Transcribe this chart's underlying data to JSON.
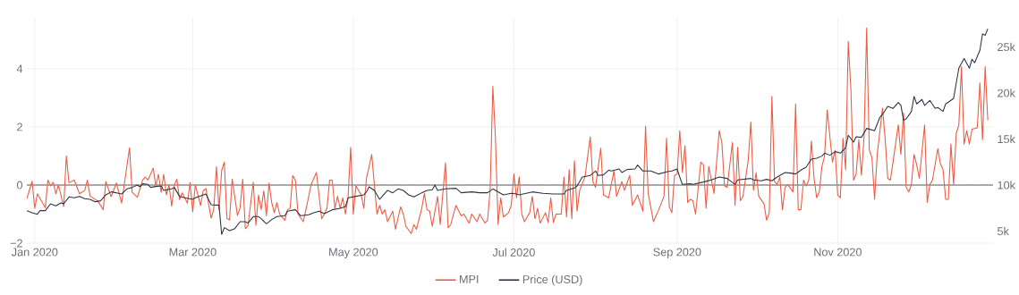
{
  "chart_data": {
    "type": "line",
    "xlim": [
      "2019-12-29",
      "2020-12-30"
    ],
    "xticks": [
      {
        "value": "2020-01-01",
        "label": "Jan 2020"
      },
      {
        "value": "2020-03-01",
        "label": "Mar 2020"
      },
      {
        "value": "2020-05-01",
        "label": "May 2020"
      },
      {
        "value": "2020-07-01",
        "label": "Jul 2020"
      },
      {
        "value": "2020-09-01",
        "label": "Sep 2020"
      },
      {
        "value": "2020-11-01",
        "label": "Nov 2020"
      }
    ],
    "ylim": [
      -2.03,
      5.75
    ],
    "yticks": [
      {
        "value": -2,
        "label": "−2"
      },
      0,
      2,
      4
    ],
    "y2lim": [
      3590,
      28150
    ],
    "y2ticks": [
      {
        "value": 5000,
        "label": "5k"
      },
      {
        "value": 10000,
        "label": "10k"
      },
      {
        "value": 15000,
        "label": "15k"
      },
      {
        "value": 20000,
        "label": "20k"
      },
      {
        "value": 25000,
        "label": "25k"
      }
    ],
    "grid": true,
    "legend": "bottom",
    "marker": "none",
    "ref_lines": [
      {
        "axis": "y",
        "value": 0,
        "color": "#8a8a8a"
      }
    ],
    "series": [
      {
        "name": "MPI",
        "color": "#ec5a42",
        "x": [
          "2019-12-29",
          "2019-12-31",
          "2020-01-01",
          "2020-01-02",
          "2020-01-05",
          "2020-01-06",
          "2020-01-07",
          "2020-01-08",
          "2020-01-09",
          "2020-01-10",
          "2020-01-12",
          "2020-01-13",
          "2020-01-14",
          "2020-01-16",
          "2020-01-18",
          "2020-01-20",
          "2020-01-21",
          "2020-01-22",
          "2020-01-25",
          "2020-01-27",
          "2020-01-28",
          "2020-01-30",
          "2020-02-01",
          "2020-02-03",
          "2020-02-06",
          "2020-02-07",
          "2020-02-09",
          "2020-02-11",
          "2020-02-12",
          "2020-02-13",
          "2020-02-15",
          "2020-02-16",
          "2020-02-17",
          "2020-02-18",
          "2020-02-19",
          "2020-02-20",
          "2020-02-21",
          "2020-02-22",
          "2020-02-23",
          "2020-02-24",
          "2020-02-25",
          "2020-02-26",
          "2020-02-28",
          "2020-02-29",
          "2020-03-01",
          "2020-03-02",
          "2020-03-04",
          "2020-03-05",
          "2020-03-06",
          "2020-03-08",
          "2020-03-09",
          "2020-03-10",
          "2020-03-11",
          "2020-03-12",
          "2020-03-13",
          "2020-03-14",
          "2020-03-15",
          "2020-03-16",
          "2020-03-18",
          "2020-03-19",
          "2020-03-20",
          "2020-03-21",
          "2020-03-22",
          "2020-03-24",
          "2020-03-25",
          "2020-03-26",
          "2020-03-27",
          "2020-03-28",
          "2020-03-29",
          "2020-03-30",
          "2020-03-31",
          "2020-04-01",
          "2020-04-02",
          "2020-04-03",
          "2020-04-05",
          "2020-04-06",
          "2020-04-07",
          "2020-04-08",
          "2020-04-09",
          "2020-04-10",
          "2020-04-12",
          "2020-04-13",
          "2020-04-15",
          "2020-04-17",
          "2020-04-19",
          "2020-04-20",
          "2020-04-21",
          "2020-04-22",
          "2020-04-23",
          "2020-04-24",
          "2020-04-25",
          "2020-04-26",
          "2020-04-27",
          "2020-04-28",
          "2020-04-29",
          "2020-04-30",
          "2020-05-01",
          "2020-05-02",
          "2020-05-04",
          "2020-05-05",
          "2020-05-06",
          "2020-05-08",
          "2020-05-09",
          "2020-05-10",
          "2020-05-11",
          "2020-05-12",
          "2020-05-13",
          "2020-05-14",
          "2020-05-16",
          "2020-05-17",
          "2020-05-19",
          "2020-05-20",
          "2020-05-21",
          "2020-05-23",
          "2020-05-24",
          "2020-05-25",
          "2020-05-27",
          "2020-05-28",
          "2020-05-29",
          "2020-05-30",
          "2020-05-31",
          "2020-06-02",
          "2020-06-03",
          "2020-06-05",
          "2020-06-06",
          "2020-06-07",
          "2020-06-09",
          "2020-06-11",
          "2020-06-12",
          "2020-06-14",
          "2020-06-15",
          "2020-06-17",
          "2020-06-18",
          "2020-06-20",
          "2020-06-21",
          "2020-06-22",
          "2020-06-23",
          "2020-06-24",
          "2020-06-25",
          "2020-06-26",
          "2020-06-27",
          "2020-06-29",
          "2020-06-30",
          "2020-07-01",
          "2020-07-02",
          "2020-07-03",
          "2020-07-04",
          "2020-07-05",
          "2020-07-07",
          "2020-07-08",
          "2020-07-09",
          "2020-07-10",
          "2020-07-11",
          "2020-07-13",
          "2020-07-14",
          "2020-07-15",
          "2020-07-16",
          "2020-07-17",
          "2020-07-19",
          "2020-07-20",
          "2020-07-21",
          "2020-07-22",
          "2020-07-23",
          "2020-07-24",
          "2020-07-25",
          "2020-07-26",
          "2020-07-28",
          "2020-07-30",
          "2020-07-31",
          "2020-08-01",
          "2020-08-03",
          "2020-08-04",
          "2020-08-06",
          "2020-08-08",
          "2020-08-09",
          "2020-08-11",
          "2020-08-12",
          "2020-08-14",
          "2020-08-15",
          "2020-08-17",
          "2020-08-19",
          "2020-08-20",
          "2020-08-21",
          "2020-08-23",
          "2020-08-25",
          "2020-08-27",
          "2020-08-28",
          "2020-08-29",
          "2020-08-30",
          "2020-08-31",
          "2020-09-01",
          "2020-09-02",
          "2020-09-03",
          "2020-09-04",
          "2020-09-05",
          "2020-09-06",
          "2020-09-07",
          "2020-09-08",
          "2020-09-10",
          "2020-09-11",
          "2020-09-12",
          "2020-09-13",
          "2020-09-15",
          "2020-09-17",
          "2020-09-18",
          "2020-09-19",
          "2020-09-20",
          "2020-09-22",
          "2020-09-23",
          "2020-09-24",
          "2020-09-25",
          "2020-09-26",
          "2020-09-28",
          "2020-09-29",
          "2020-09-30",
          "2020-10-01",
          "2020-10-02",
          "2020-10-04",
          "2020-10-05",
          "2020-10-06",
          "2020-10-07",
          "2020-10-08",
          "2020-10-09",
          "2020-10-10",
          "2020-10-11",
          "2020-10-12",
          "2020-10-13",
          "2020-10-15",
          "2020-10-16",
          "2020-10-17",
          "2020-10-18",
          "2020-10-19",
          "2020-10-20",
          "2020-10-21",
          "2020-10-22",
          "2020-10-23",
          "2020-10-24",
          "2020-10-25",
          "2020-10-26",
          "2020-10-27",
          "2020-10-28",
          "2020-10-30",
          "2020-10-31",
          "2020-11-01",
          "2020-11-02",
          "2020-11-03",
          "2020-11-04",
          "2020-11-05",
          "2020-11-06",
          "2020-11-07",
          "2020-11-08",
          "2020-11-09",
          "2020-11-10",
          "2020-11-11",
          "2020-11-12",
          "2020-11-13",
          "2020-11-14",
          "2020-11-15",
          "2020-11-16",
          "2020-11-18",
          "2020-11-19",
          "2020-11-20",
          "2020-11-21",
          "2020-11-22",
          "2020-11-24",
          "2020-11-25",
          "2020-11-26",
          "2020-11-27",
          "2020-11-28",
          "2020-11-29",
          "2020-11-30",
          "2020-12-01",
          "2020-12-02",
          "2020-12-04",
          "2020-12-05",
          "2020-12-06",
          "2020-12-07",
          "2020-12-09",
          "2020-12-10",
          "2020-12-11",
          "2020-12-12",
          "2020-12-13",
          "2020-12-14",
          "2020-12-15",
          "2020-12-16",
          "2020-12-17",
          "2020-12-18",
          "2020-12-19",
          "2020-12-20",
          "2020-12-21",
          "2020-12-22",
          "2020-12-24",
          "2020-12-25",
          "2020-12-26",
          "2020-12-27",
          "2020-12-28"
        ],
        "values": [
          -0.47,
          0.13,
          -0.8,
          -0.3,
          -0.78,
          0.17,
          -0.03,
          0.1,
          -0.3,
          0.0,
          -0.74,
          1.0,
          0.08,
          0.17,
          -0.3,
          -0.18,
          0.17,
          -0.38,
          -0.55,
          -0.85,
          0.12,
          -0.4,
          0.07,
          -0.62,
          1.28,
          -0.25,
          -0.42,
          0.17,
          0.27,
          0.17,
          0.58,
          -0.03,
          0.37,
          -0.25,
          0.37,
          -0.34,
          0.0,
          -0.73,
          0.0,
          0.2,
          -0.5,
          -0.27,
          -0.62,
          0.08,
          -0.92,
          0.0,
          -0.7,
          -0.2,
          -0.12,
          -1.14,
          -0.83,
          0.63,
          -0.85,
          0.5,
          0.79,
          -1.15,
          -1.2,
          0.21,
          -1.05,
          -0.78,
          0.2,
          -1.5,
          -1.4,
          0.1,
          -1.38,
          -0.34,
          -0.84,
          -0.2,
          -1.05,
          0.07,
          -0.6,
          -0.95,
          -0.6,
          -1.0,
          -1.21,
          -0.85,
          -0.8,
          0.33,
          0.17,
          -1.0,
          -1.26,
          -0.85,
          0.02,
          0.43,
          -1.16,
          -1.0,
          -0.8,
          0.17,
          0.17,
          -0.8,
          -0.39,
          -0.8,
          -0.44,
          -1.0,
          -0.44,
          1.3,
          -1.0,
          -0.03,
          -0.34,
          -0.8,
          0.23,
          1.05,
          0.02,
          -1.0,
          -0.7,
          -1.0,
          -0.85,
          -1.26,
          -0.9,
          -1.52,
          -0.75,
          -1.0,
          -1.42,
          -1.67,
          -1.36,
          -1.52,
          -0.8,
          -0.29,
          -0.85,
          -0.9,
          -1.42,
          -0.39,
          -1.36,
          0.76,
          -1.47,
          -1.36,
          -0.7,
          -1.06,
          -1.0,
          -1.31,
          -1.0,
          -1.26,
          -1.0,
          -1.31,
          -1.21,
          -0.13,
          3.4,
          1.6,
          -1.36,
          -0.44,
          -1.1,
          -0.95,
          -0.7,
          0.38,
          -0.44,
          0.28,
          -1.0,
          -1.26,
          -0.95,
          -0.39,
          -1.16,
          -0.8,
          -1.31,
          -0.95,
          -1.29,
          -0.44,
          -1.29,
          -1.0,
          -1.0,
          0.28,
          -1.1,
          0.53,
          -1.16,
          0.84,
          -0.9,
          -0.18,
          0.28,
          1.66,
          0.12,
          -0.08,
          1.27,
          -0.34,
          -0.44,
          0.48,
          -0.39,
          0.12,
          -0.18,
          0.33,
          -0.7,
          -0.34,
          -0.9,
          2.02,
          -0.29,
          -1.26,
          -0.85,
          -0.39,
          1.61,
          -0.75,
          -0.95,
          0.33,
          0.38,
          1.87,
          0.43,
          1.35,
          -0.6,
          -0.49,
          -0.54,
          -1.0,
          0.79,
          0.69,
          -0.8,
          0.64,
          -0.29,
          1.87,
          1.46,
          -0.03,
          -0.08,
          1.46,
          -0.7,
          1.3,
          -0.54,
          -0.39,
          0.84,
          2.17,
          -0.18,
          0.43,
          -0.39,
          -0.65,
          -1.21,
          -0.95,
          3.05,
          0.12,
          0.02,
          0.28,
          -0.85,
          -0.08,
          0.02,
          -0.24,
          2.79,
          -0.85,
          -0.85,
          0.17,
          -0.03,
          0.17,
          1.51,
          0.23,
          -0.44,
          -0.24,
          0.64,
          0.99,
          2.58,
          0.79,
          1.2,
          -0.34,
          -0.44,
          1.61,
          0.53,
          4.94,
          3.3,
          0.17,
          0.38,
          1.56,
          0.33,
          1.66,
          5.4,
          1.2,
          0.94,
          -0.49,
          1.05,
          2.64,
          1.61,
          0.23,
          0.17,
          0.79,
          2.07,
          1.05,
          2.48,
          -0.08,
          -0.24,
          0.02,
          1.05,
          0.69,
          0.23,
          2.07,
          -0.6,
          0.02,
          0.17,
          1.25,
          0.74,
          0.53,
          -0.49,
          -0.49,
          1.41,
          0.02,
          1.76,
          2.07,
          4.07,
          1.41,
          1.87,
          1.41,
          1.92,
          1.97,
          3.51,
          1.56,
          4.07,
          2.23
        ]
      },
      {
        "name": "Price (USD)",
        "color": "#2a3440",
        "axis": "y2",
        "x": [
          "2019-12-29",
          "2019-12-31",
          "2020-01-02",
          "2020-01-03",
          "2020-01-05",
          "2020-01-07",
          "2020-01-09",
          "2020-01-11",
          "2020-01-12",
          "2020-01-14",
          "2020-01-16",
          "2020-01-18",
          "2020-01-20",
          "2020-01-22",
          "2020-01-24",
          "2020-01-26",
          "2020-01-28",
          "2020-01-30",
          "2020-02-01",
          "2020-02-03",
          "2020-02-05",
          "2020-02-07",
          "2020-02-09",
          "2020-02-10",
          "2020-02-11",
          "2020-02-13",
          "2020-02-14",
          "2020-02-16",
          "2020-02-18",
          "2020-02-19",
          "2020-02-22",
          "2020-02-23",
          "2020-02-25",
          "2020-02-27",
          "2020-03-01",
          "2020-03-02",
          "2020-03-05",
          "2020-03-06",
          "2020-03-08",
          "2020-03-11",
          "2020-03-12",
          "2020-03-13",
          "2020-03-15",
          "2020-03-17",
          "2020-03-19",
          "2020-03-21",
          "2020-03-22",
          "2020-03-24",
          "2020-03-26",
          "2020-03-27",
          "2020-03-29",
          "2020-03-31",
          "2020-04-02",
          "2020-04-05",
          "2020-04-06",
          "2020-04-09",
          "2020-04-11",
          "2020-04-14",
          "2020-04-16",
          "2020-04-18",
          "2020-04-20",
          "2020-04-23",
          "2020-04-26",
          "2020-04-28",
          "2020-04-29",
          "2020-05-02",
          "2020-05-05",
          "2020-05-06",
          "2020-05-07",
          "2020-05-09",
          "2020-05-11",
          "2020-05-12",
          "2020-05-14",
          "2020-05-16",
          "2020-05-18",
          "2020-05-20",
          "2020-05-22",
          "2020-05-24",
          "2020-05-27",
          "2020-05-29",
          "2020-05-31",
          "2020-06-01",
          "2020-06-02",
          "2020-06-05",
          "2020-06-09",
          "2020-06-11",
          "2020-06-15",
          "2020-06-18",
          "2020-06-21",
          "2020-06-23",
          "2020-06-27",
          "2020-06-30",
          "2020-07-02",
          "2020-07-03",
          "2020-07-08",
          "2020-07-12",
          "2020-07-16",
          "2020-07-20",
          "2020-07-21",
          "2020-07-24",
          "2020-07-25",
          "2020-07-27",
          "2020-07-30",
          "2020-08-01",
          "2020-08-02",
          "2020-08-04",
          "2020-08-06",
          "2020-08-07",
          "2020-08-10",
          "2020-08-11",
          "2020-08-13",
          "2020-08-16",
          "2020-08-17",
          "2020-08-19",
          "2020-08-22",
          "2020-08-25",
          "2020-08-28",
          "2020-08-30",
          "2020-09-01",
          "2020-09-02",
          "2020-09-03",
          "2020-09-06",
          "2020-09-07",
          "2020-09-11",
          "2020-09-14",
          "2020-09-17",
          "2020-09-20",
          "2020-09-23",
          "2020-09-24",
          "2020-09-29",
          "2020-09-30",
          "2020-10-03",
          "2020-10-05",
          "2020-10-07",
          "2020-10-09",
          "2020-10-12",
          "2020-10-14",
          "2020-10-16",
          "2020-10-18",
          "2020-10-20",
          "2020-10-22",
          "2020-10-24",
          "2020-10-26",
          "2020-10-27",
          "2020-10-29",
          "2020-10-31",
          "2020-11-02",
          "2020-11-04",
          "2020-11-05",
          "2020-11-07",
          "2020-11-08",
          "2020-11-10",
          "2020-11-12",
          "2020-11-15",
          "2020-11-17",
          "2020-11-18",
          "2020-11-20",
          "2020-11-22",
          "2020-11-24",
          "2020-11-25",
          "2020-11-26",
          "2020-11-27",
          "2020-11-29",
          "2020-11-30",
          "2020-12-01",
          "2020-12-03",
          "2020-12-04",
          "2020-12-06",
          "2020-12-08",
          "2020-12-09",
          "2020-12-11",
          "2020-12-12",
          "2020-12-14",
          "2020-12-15",
          "2020-12-17",
          "2020-12-19",
          "2020-12-21",
          "2020-12-22",
          "2020-12-23",
          "2020-12-25",
          "2020-12-26",
          "2020-12-27",
          "2020-12-28"
        ],
        "values": [
          7216,
          6990,
          6828,
          7216,
          7216,
          7961,
          7734,
          8058,
          7961,
          8705,
          8608,
          8770,
          8511,
          8446,
          8187,
          8284,
          8932,
          9255,
          9158,
          9029,
          9579,
          9741,
          10000,
          9806,
          10129,
          10065,
          9741,
          9838,
          9903,
          9417,
          9579,
          9741,
          8770,
          8608,
          8446,
          8608,
          8932,
          9029,
          7864,
          7799,
          4627,
          5371,
          5047,
          5274,
          6019,
          6019,
          5857,
          6569,
          6569,
          6342,
          5792,
          6245,
          6569,
          6666,
          7151,
          7313,
          6666,
          6763,
          6990,
          7151,
          6892,
          7313,
          7475,
          7637,
          8608,
          8770,
          8932,
          9255,
          9806,
          9417,
          8446,
          8770,
          9417,
          9158,
          9579,
          9417,
          8932,
          8705,
          9158,
          9417,
          9482,
          10000,
          9417,
          9579,
          9644,
          9158,
          9255,
          9158,
          9158,
          9579,
          8932,
          9094,
          9029,
          8932,
          9255,
          9094,
          9029,
          9029,
          9417,
          9676,
          9903,
          10874,
          11036,
          11521,
          11036,
          11101,
          11618,
          11521,
          11748,
          11360,
          11683,
          11748,
          12169,
          11521,
          11521,
          11198,
          11424,
          11521,
          11748,
          10874,
          10065,
          10129,
          10065,
          10324,
          10550,
          10874,
          10712,
          10065,
          10550,
          10712,
          10550,
          10453,
          10615,
          10453,
          10874,
          11360,
          11295,
          11198,
          11618,
          11942,
          12816,
          12913,
          13140,
          13464,
          13237,
          13625,
          13464,
          14046,
          15406,
          14661,
          15244,
          15179,
          16150,
          15891,
          17348,
          17672,
          18546,
          18319,
          18966,
          18643,
          17024,
          17186,
          17995,
          19614,
          18805,
          19290,
          18643,
          19193,
          18319,
          18416,
          17995,
          18805,
          19193,
          19387,
          22690,
          23725,
          22690,
          23660,
          23272,
          24631,
          26412,
          26250,
          26962
        ]
      }
    ]
  }
}
